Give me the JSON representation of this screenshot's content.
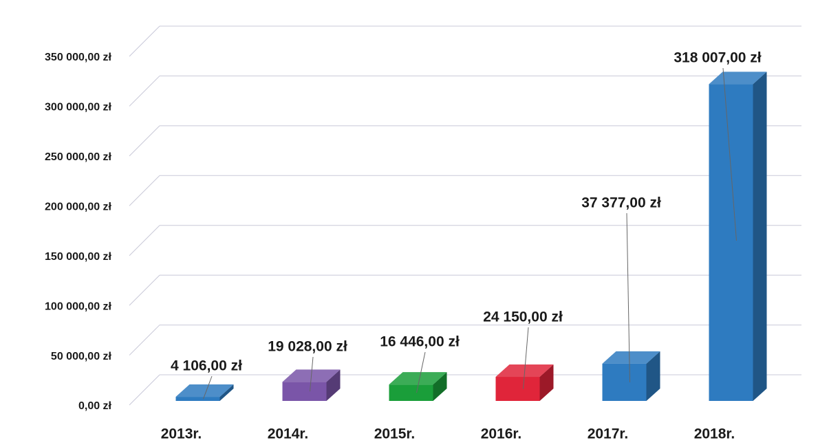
{
  "chart_data": {
    "type": "bar3d",
    "categories": [
      "2013r.",
      "2014r.",
      "2015r.",
      "2016r.",
      "2017r.",
      "2018r."
    ],
    "values": [
      4106,
      19028,
      16446,
      24150,
      37377,
      318007
    ],
    "value_labels": [
      "4 106,00 zł",
      "19 028,00 zł",
      "16 446,00 zł",
      "24 150,00 zł",
      "37 377,00 zł",
      "318 007,00 zł"
    ],
    "colors": [
      "#2e7bc0",
      "#7a55a8",
      "#1a9e3a",
      "#e0253a",
      "#2e7bc0",
      "#2e7bc0"
    ],
    "ylim": [
      0,
      350000
    ],
    "yticks": [
      {
        "value": 0,
        "label": "0,00 zł"
      },
      {
        "value": 50000,
        "label": "50 000,00 zł"
      },
      {
        "value": 100000,
        "label": "100 000,00 zł"
      },
      {
        "value": 150000,
        "label": "150 000,00 zł"
      },
      {
        "value": 200000,
        "label": "200 000,00 zł"
      },
      {
        "value": 250000,
        "label": "250 000,00 zł"
      },
      {
        "value": 300000,
        "label": "300 000,00 zł"
      },
      {
        "value": 350000,
        "label": "350 000,00 zł"
      }
    ],
    "grid": true
  }
}
